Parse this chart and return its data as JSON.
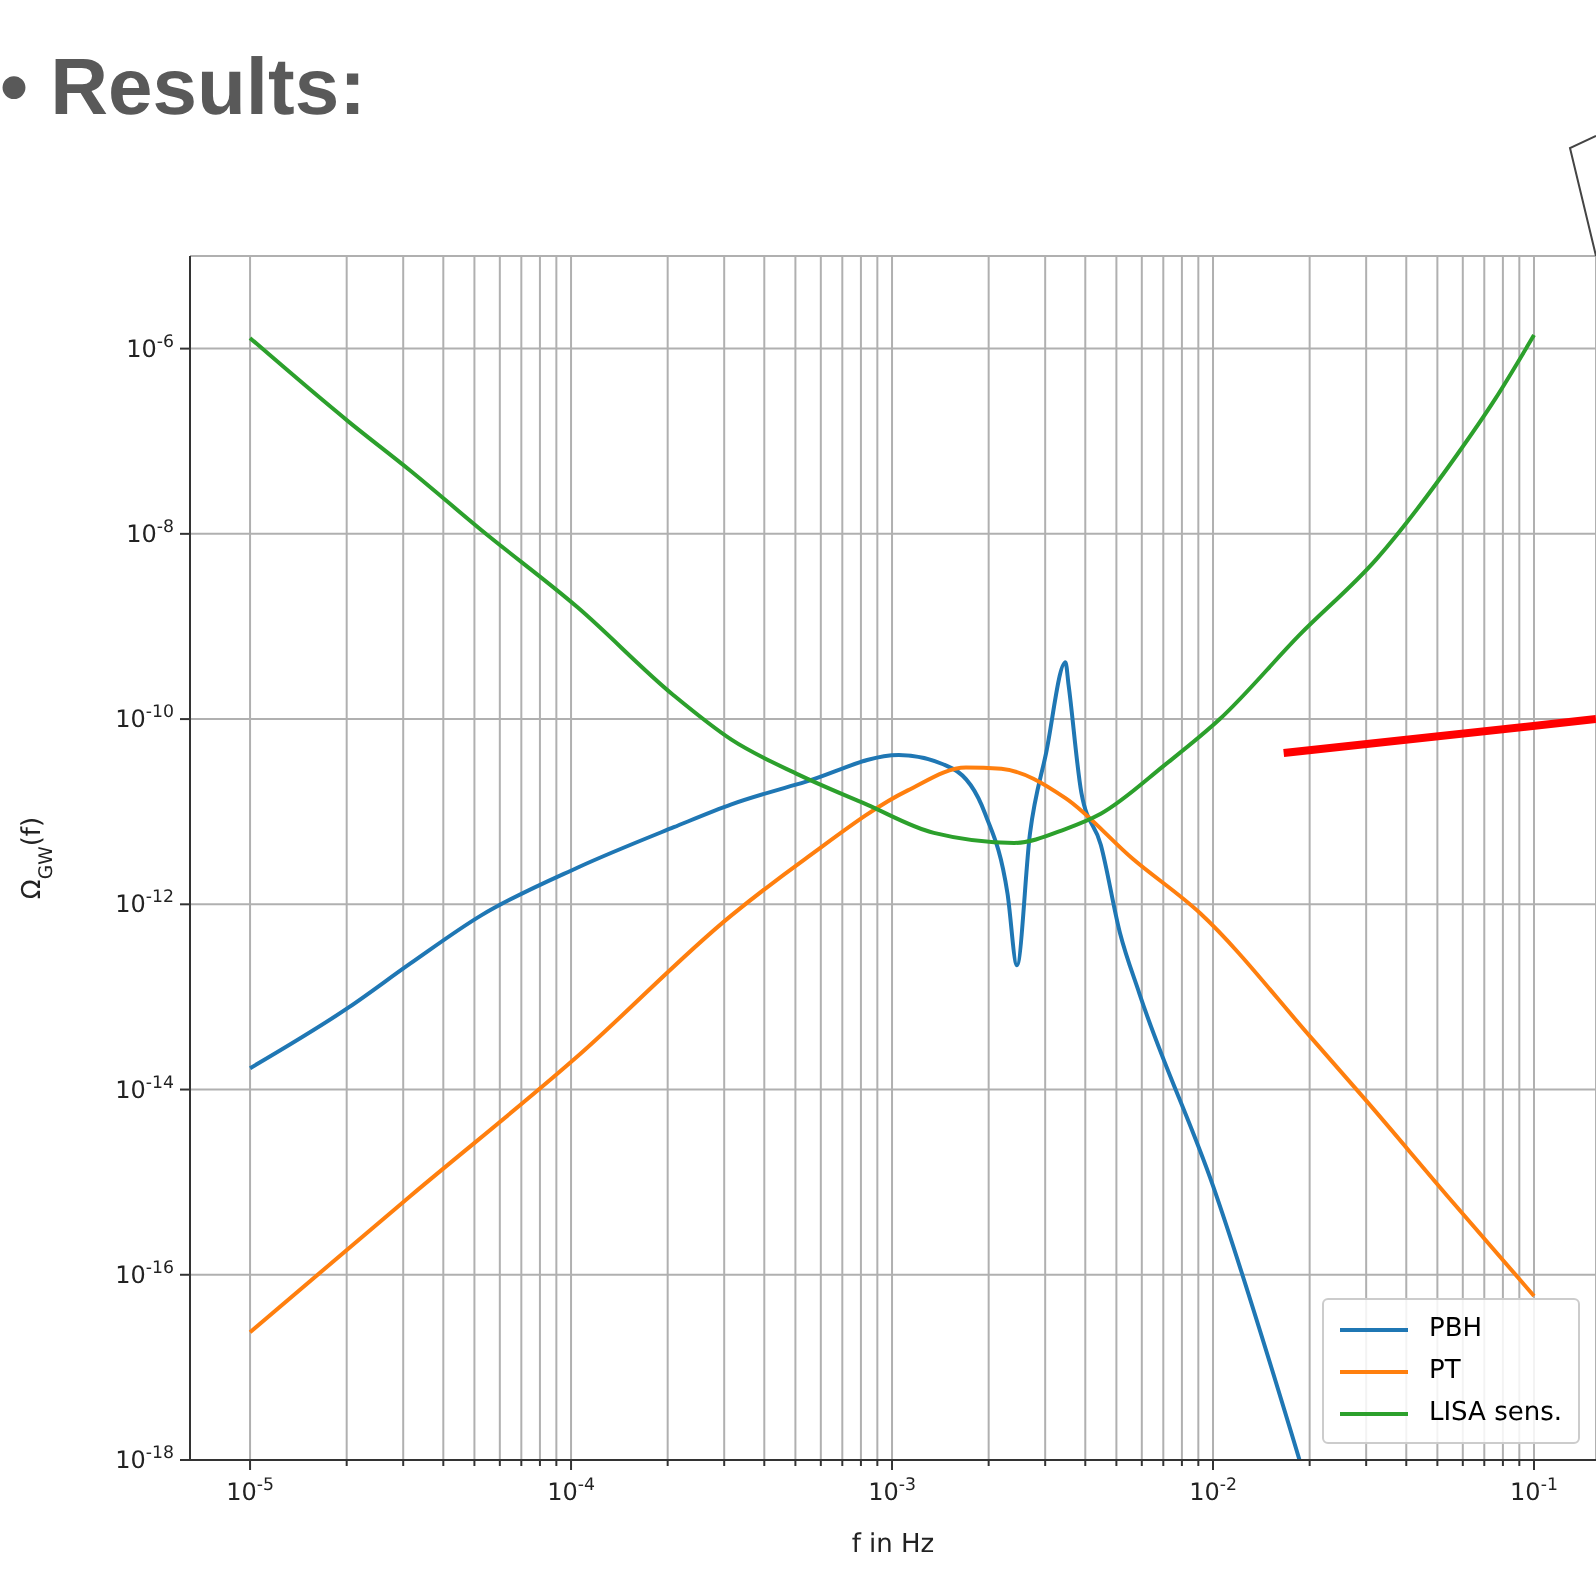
{
  "chart_data": {
    "type": "line",
    "title": "• Results:",
    "xlabel": "f in Hz",
    "ylabel": "Ω$_{GW}$(f)",
    "log": "xy",
    "grid": true,
    "legend": "bottom right",
    "marker": "none",
    "line_style": "solid",
    "xlim": [
      6.5e-06,
      0.156
    ],
    "ylim": [
      1e-18,
      1e-05
    ],
    "xticks": [
      {
        "value": 1e-05,
        "label": "10$^{-5}$"
      },
      {
        "value": 2e-05,
        "label": null
      },
      {
        "value": 3e-05,
        "label": null
      },
      {
        "value": 4e-05,
        "label": null
      },
      {
        "value": 5e-05,
        "label": null
      },
      {
        "value": 6e-05,
        "label": null
      },
      {
        "value": 7e-05,
        "label": null
      },
      {
        "value": 8e-05,
        "label": null
      },
      {
        "value": 9e-05,
        "label": null
      },
      {
        "value": 0.0001,
        "label": "10$^{-4}$"
      },
      {
        "value": 0.0002,
        "label": null
      },
      {
        "value": 0.0003,
        "label": null
      },
      {
        "value": 0.0004,
        "label": null
      },
      {
        "value": 0.0005,
        "label": null
      },
      {
        "value": 0.0006,
        "label": null
      },
      {
        "value": 0.0007,
        "label": null
      },
      {
        "value": 0.0008,
        "label": null
      },
      {
        "value": 0.0009,
        "label": null
      },
      {
        "value": 0.001,
        "label": "10$^{-3}$"
      },
      {
        "value": 0.002,
        "label": null
      },
      {
        "value": 0.003,
        "label": null
      },
      {
        "value": 0.004,
        "label": null
      },
      {
        "value": 0.005,
        "label": null
      },
      {
        "value": 0.006,
        "label": null
      },
      {
        "value": 0.007,
        "label": null
      },
      {
        "value": 0.008,
        "label": null
      },
      {
        "value": 0.009,
        "label": null
      },
      {
        "value": 0.01,
        "label": "10$^{-2}$"
      },
      {
        "value": 0.02,
        "label": null
      },
      {
        "value": 0.03,
        "label": null
      },
      {
        "value": 0.04,
        "label": null
      },
      {
        "value": 0.05,
        "label": null
      },
      {
        "value": 0.06,
        "label": null
      },
      {
        "value": 0.07,
        "label": null
      },
      {
        "value": 0.08,
        "label": null
      },
      {
        "value": 0.09,
        "label": null
      },
      {
        "value": 0.1,
        "label": "10$^{-1}$"
      }
    ],
    "yticks": [
      {
        "value": 1e-18,
        "label": "10$^{-18}$"
      },
      {
        "value": 1e-16,
        "label": "10$^{-16}$"
      },
      {
        "value": 1e-14,
        "label": "10$^{-14}$"
      },
      {
        "value": 1e-12,
        "label": "10$^{-12}$"
      },
      {
        "value": 1e-10,
        "label": "10$^{-10}$"
      },
      {
        "value": 1e-08,
        "label": "10$^{-8}$"
      },
      {
        "value": 1e-06,
        "label": "10$^{-6}$"
      }
    ],
    "series": [
      {
        "name": "PBH",
        "color": "#1f77b4",
        "x": [
          1e-05,
          2.04e-05,
          3.16e-05,
          5.25e-05,
          0.000105,
          0.000209,
          0.000316,
          0.000537,
          0.00105,
          0.00155,
          0.00195,
          0.00229,
          0.00245,
          0.00269,
          0.00302,
          0.00347,
          0.00355,
          0.00389,
          0.00447,
          0.00513,
          0.00589,
          0.01,
          0.0186
        ],
        "values": [
          1.7e-14,
          7.8e-14,
          2.3e-13,
          7.6e-13,
          2.5e-12,
          6.8e-12,
          1.2e-11,
          2.1e-11,
          4.1e-11,
          2.9e-11,
          9.5e-12,
          1.3e-12,
          2.2e-13,
          5.8e-12,
          4.3e-11,
          4.1e-10,
          2.3e-10,
          1.6e-11,
          4.4e-12,
          4.9e-13,
          1.1e-13,
          9.1e-16,
          1e-18
        ]
      },
      {
        "name": "PT",
        "color": "#ff7f0e",
        "x": [
          1e-05,
          3.16e-05,
          0.000105,
          0.000316,
          0.000537,
          0.00112,
          0.0017,
          0.00219,
          0.00347,
          0.00562,
          0.00912,
          0.0204,
          0.0302,
          0.0537,
          0.1
        ],
        "values": [
          2.4e-17,
          7.1e-16,
          2.3e-14,
          7.6e-13,
          3.1e-12,
          1.7e-11,
          3e-11,
          2.9e-11,
          1.4e-11,
          3.1e-12,
          8e-13,
          3.5e-14,
          7.4e-15,
          7.1e-16,
          5.9e-17
        ]
      },
      {
        "color": "#ff0000",
        "x": [
          0.0166,
          0.156
        ],
        "values": [
          4.3e-11,
          1e-10
        ]
      },
      {
        "name": "LISA sens.",
        "color": "#2ca02c",
        "x": [
          1e-05,
          2.04e-05,
          3.16e-05,
          5.25e-05,
          0.000105,
          0.000209,
          0.000316,
          0.000513,
          0.000832,
          0.00135,
          0.0024,
          0.00347,
          0.00447,
          0.00708,
          0.0105,
          0.0186,
          0.0324,
          0.0575,
          0.0759,
          0.1
        ],
        "values": [
          1.3e-06,
          1.6e-07,
          4.8e-08,
          1.1e-08,
          1.6e-09,
          1.8e-10,
          6e-11,
          2.5e-11,
          1.2e-11,
          5.9e-12,
          4.6e-12,
          6.5e-12,
          9.5e-12,
          3.2e-11,
          1e-10,
          8.1e-10,
          5.4e-09,
          7.1e-08,
          2.9e-07,
          1.4e-06
        ]
      }
    ]
  }
}
